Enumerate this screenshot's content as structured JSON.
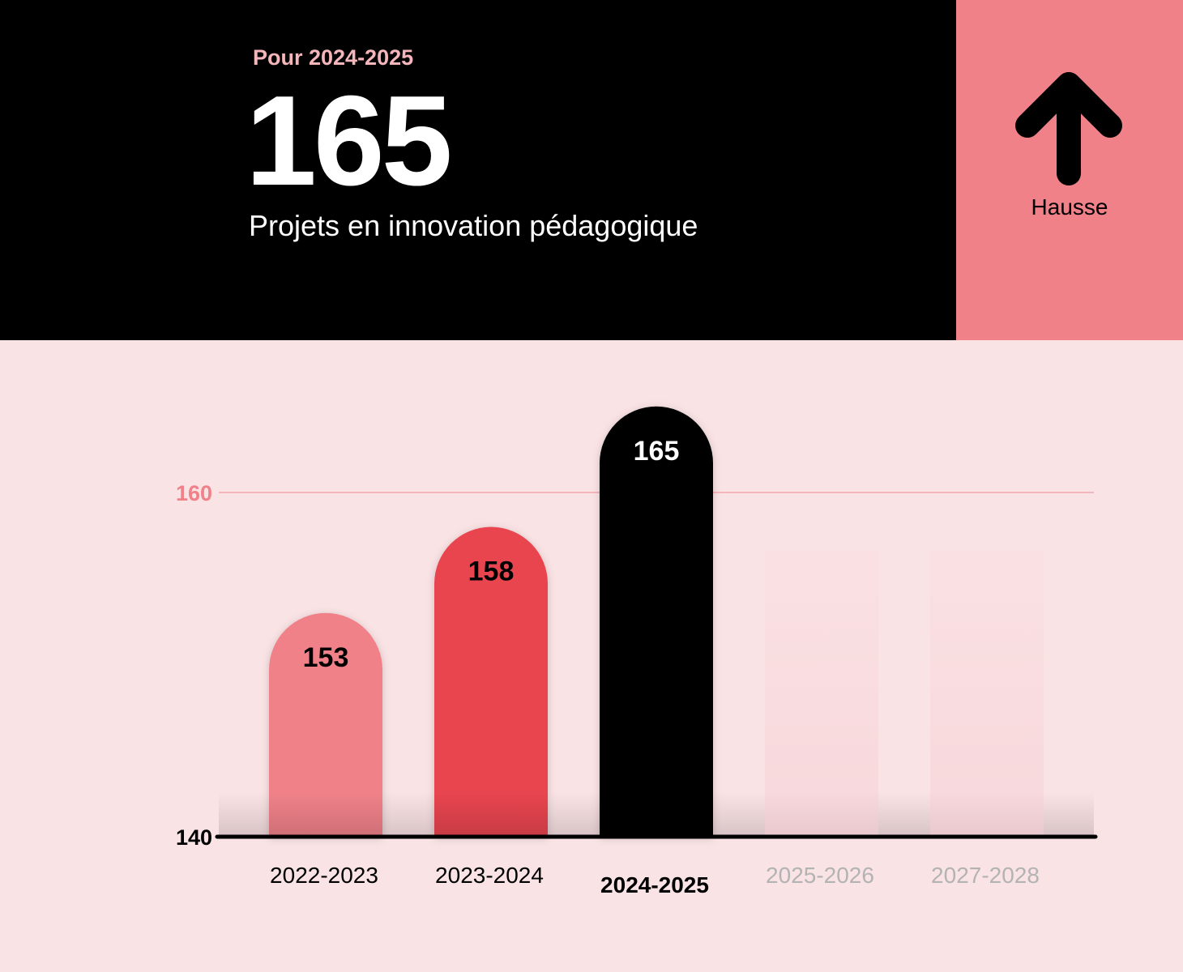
{
  "header": {
    "period": "Pour 2024-2025",
    "value": "165",
    "subtitle": "Projets en innovation pédagogique"
  },
  "trend": {
    "label": "Hausse",
    "icon": "arrow-up-icon",
    "background": "#f08189"
  },
  "colors": {
    "header_bg": "#000000",
    "page_bg": "#fae3e5",
    "accent_pink": "#f08189",
    "accent_red": "#e84450",
    "gridline": "#f4a7b0",
    "muted_label": "#b3b3b3"
  },
  "chart_data": {
    "type": "bar",
    "categories": [
      "2022-2023",
      "2023-2024",
      "2024-2025",
      "2025-2026",
      "2027-2028"
    ],
    "values": [
      153,
      158,
      165,
      null,
      null
    ],
    "bar_labels": [
      "153",
      "158",
      "165",
      "",
      ""
    ],
    "bar_colors": [
      "#f08189",
      "#e84450",
      "#000000",
      "#fadadd",
      "#fadadd"
    ],
    "label_colors": [
      "#000000",
      "#000000",
      "#ffffff",
      "",
      ""
    ],
    "highlight_index": 2,
    "y_ticks": [
      140,
      160
    ],
    "ylim": [
      140,
      166
    ],
    "grid": true
  }
}
